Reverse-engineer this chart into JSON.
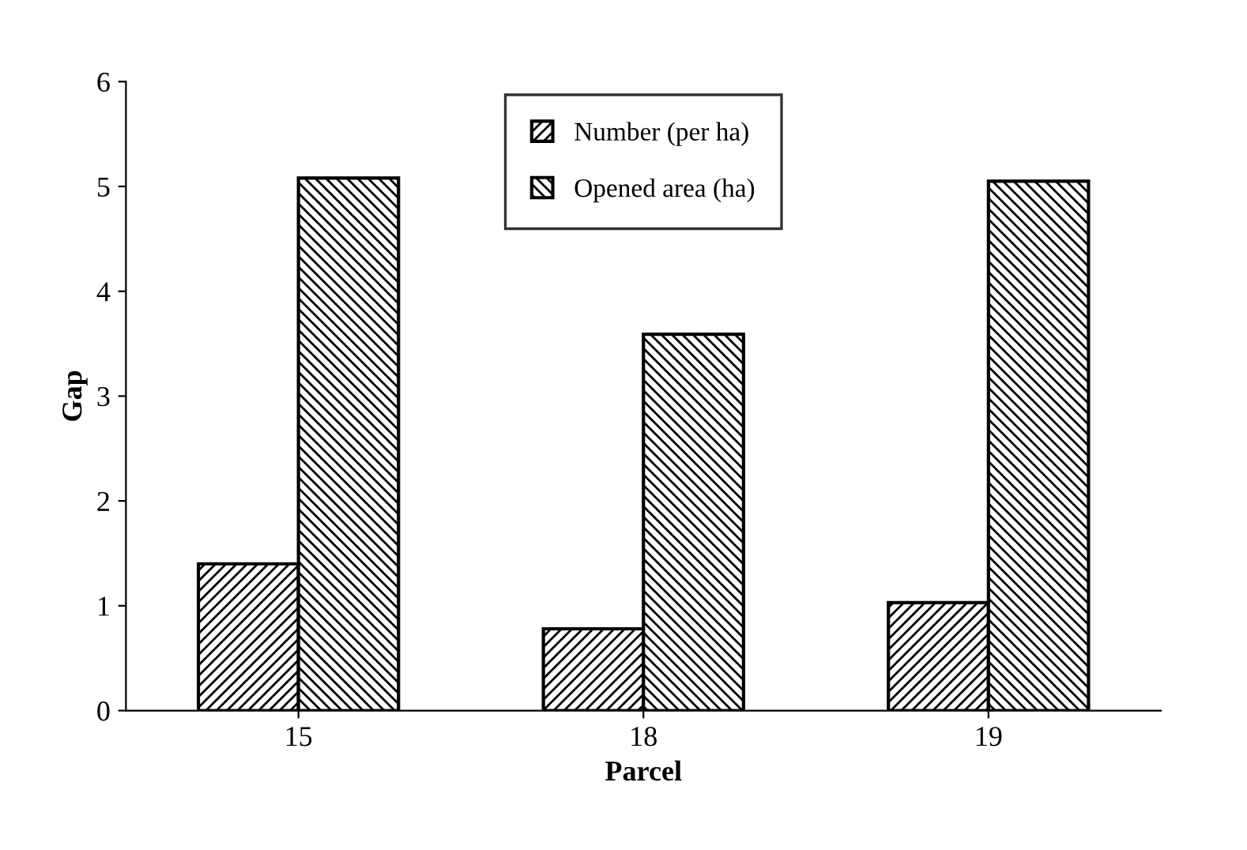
{
  "chart_data": {
    "type": "bar",
    "xlabel": "Parcel",
    "ylabel": "Gap",
    "categories": [
      "15",
      "18",
      "19"
    ],
    "series": [
      {
        "name": "Number (per ha)",
        "color": "#000000",
        "values": [
          1.4,
          0.78,
          1.03
        ]
      },
      {
        "name": "Opened area (ha)",
        "color": "#000000",
        "values": [
          5.08,
          3.59,
          5.05
        ]
      }
    ],
    "ylim": [
      0,
      6
    ],
    "yticks": [
      0,
      1,
      2,
      3,
      4,
      5,
      6
    ],
    "grid": false,
    "legend": "top center"
  }
}
